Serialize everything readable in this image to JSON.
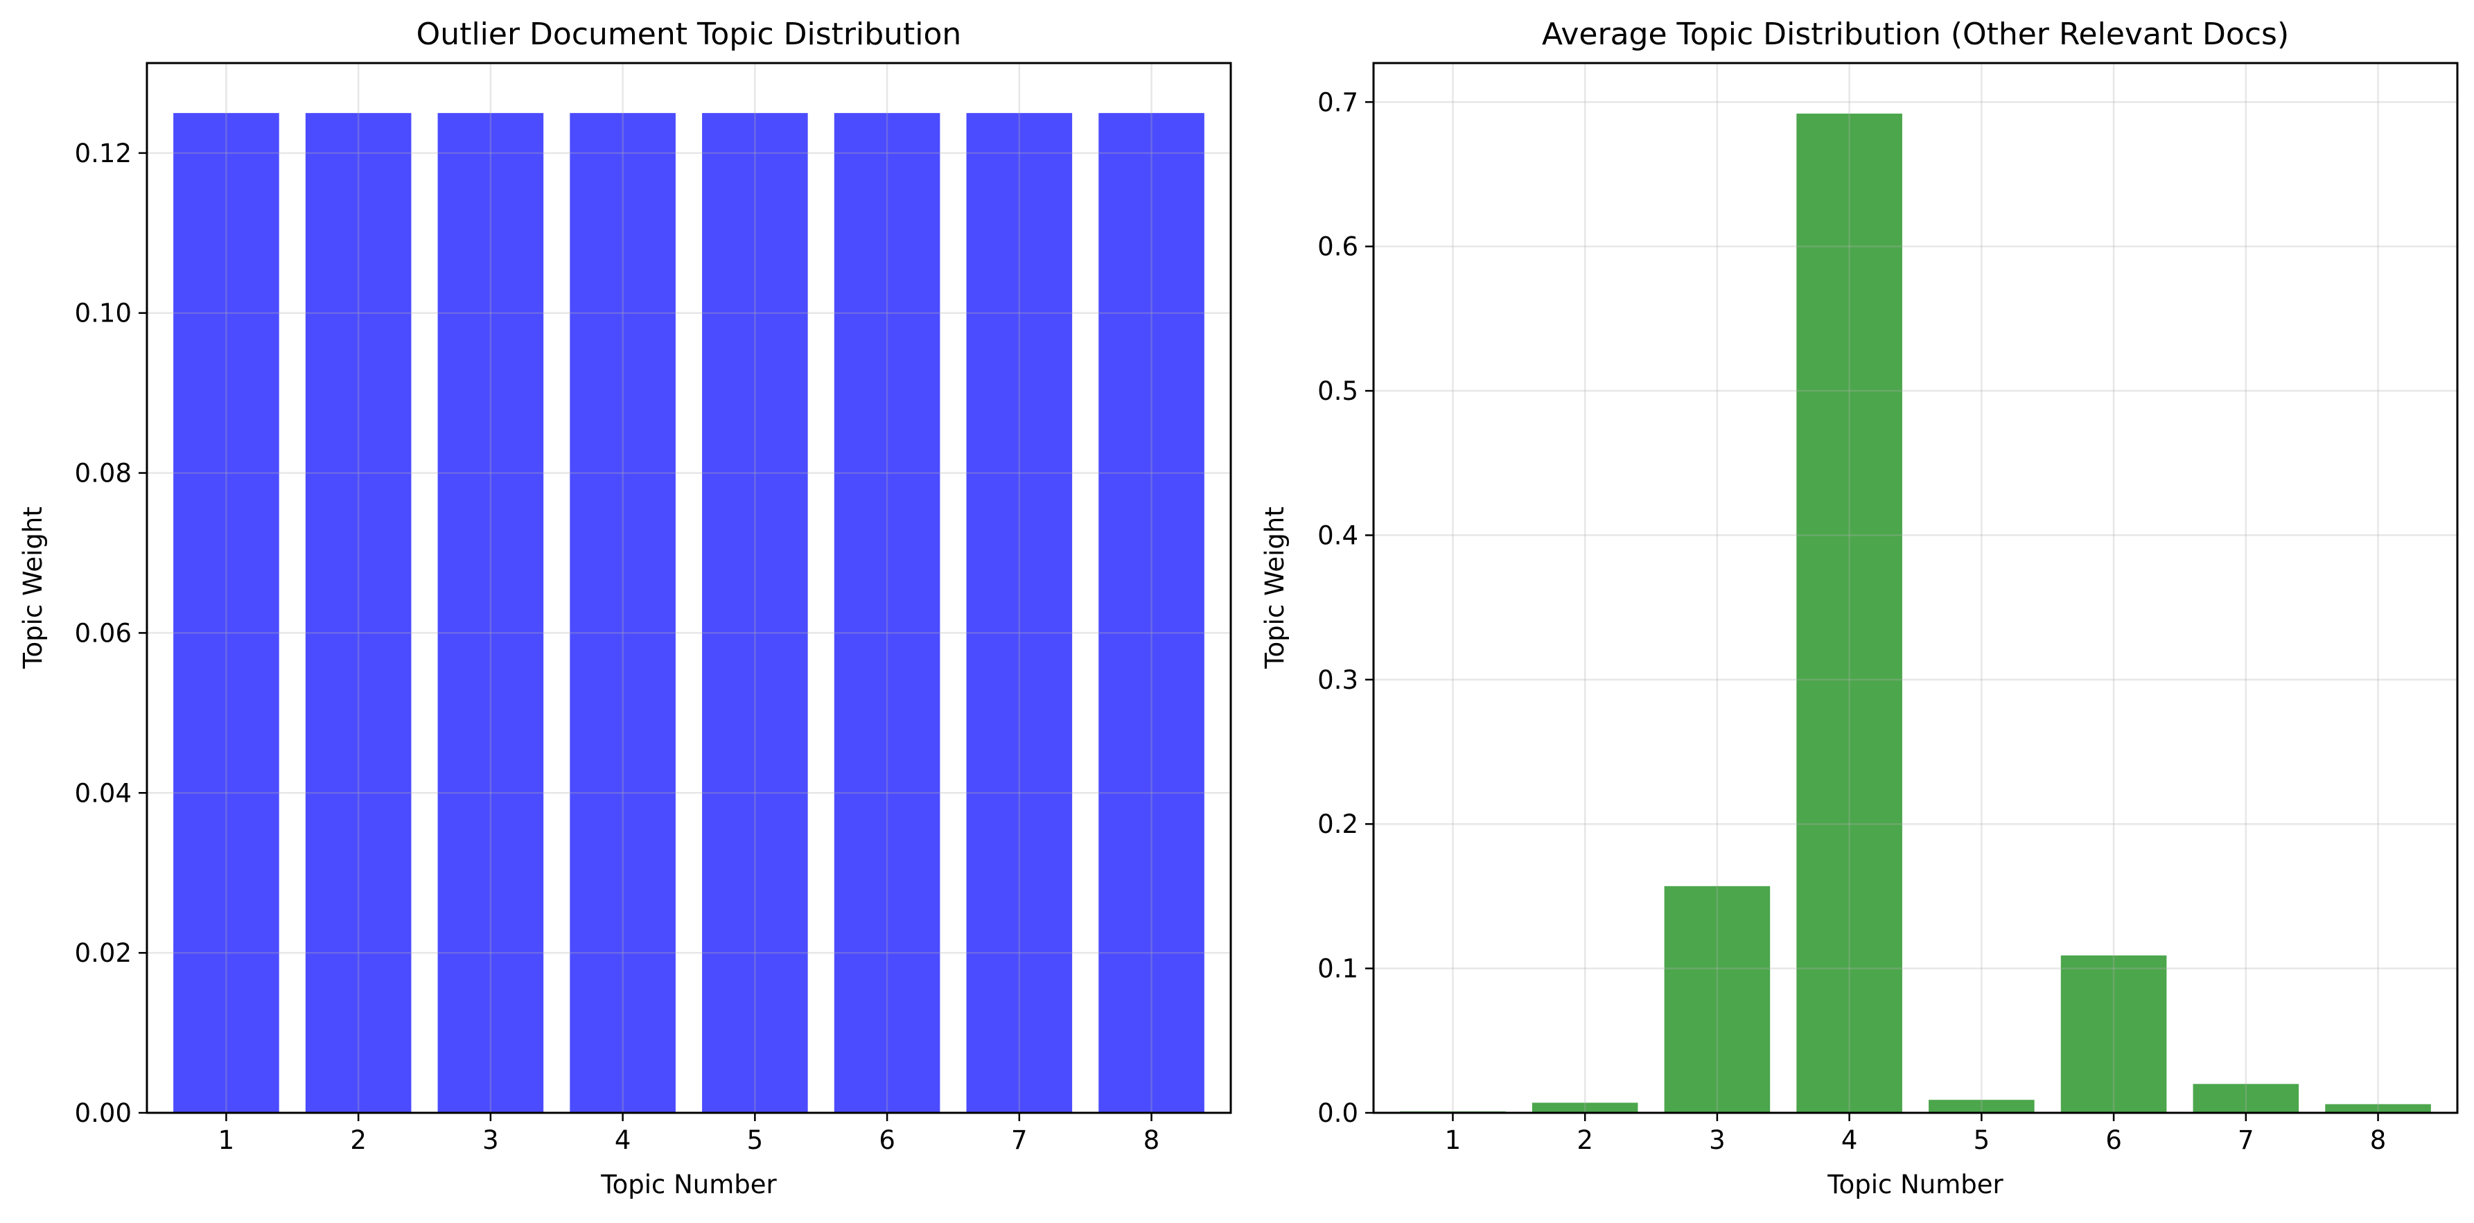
{
  "chart_data": [
    {
      "type": "bar",
      "title": "Outlier Document Topic Distribution",
      "xlabel": "Topic Number",
      "ylabel": "Topic Weight",
      "categories": [
        "1",
        "2",
        "3",
        "4",
        "5",
        "6",
        "7",
        "8"
      ],
      "values": [
        0.125,
        0.125,
        0.125,
        0.125,
        0.125,
        0.125,
        0.125,
        0.125
      ],
      "ylim": [
        0,
        0.13125
      ],
      "yticks": [
        "0.00",
        "0.02",
        "0.04",
        "0.06",
        "0.08",
        "0.10",
        "0.12"
      ],
      "ytick_values": [
        0,
        0.02,
        0.04,
        0.06,
        0.08,
        0.1,
        0.12
      ],
      "color": "#4b4bff",
      "grid": true,
      "legend": "none"
    },
    {
      "type": "bar",
      "title": "Average Topic Distribution (Other Relevant Docs)",
      "xlabel": "Topic Number",
      "ylabel": "Topic Weight",
      "categories": [
        "1",
        "2",
        "3",
        "4",
        "5",
        "6",
        "7",
        "8"
      ],
      "values": [
        0.001,
        0.007,
        0.157,
        0.692,
        0.009,
        0.109,
        0.02,
        0.006
      ],
      "ylim": [
        0,
        0.727
      ],
      "yticks": [
        "0.0",
        "0.1",
        "0.2",
        "0.3",
        "0.4",
        "0.5",
        "0.6",
        "0.7"
      ],
      "ytick_values": [
        0,
        0.1,
        0.2,
        0.3,
        0.4,
        0.5,
        0.6,
        0.7
      ],
      "color": "#4ca64c",
      "grid": true,
      "legend": "none"
    }
  ]
}
